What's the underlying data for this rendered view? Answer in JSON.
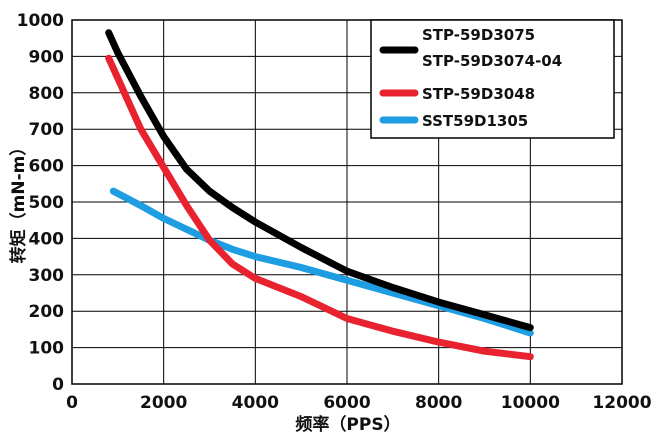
{
  "chart_data": {
    "type": "line",
    "title": "",
    "xlabel": "频率（PPS）",
    "ylabel": "转矩（mN-m）",
    "xlim": [
      0,
      12000
    ],
    "ylim": [
      0,
      1000
    ],
    "xticks": [
      0,
      2000,
      4000,
      6000,
      8000,
      10000,
      12000
    ],
    "yticks": [
      0,
      100,
      200,
      300,
      400,
      500,
      600,
      700,
      800,
      900,
      1000
    ],
    "grid": true,
    "legend_position": "top-right",
    "series": [
      {
        "name": "STP-59D3075",
        "name2": "STP-59D3074-04",
        "color": "#000000",
        "x": [
          800,
          1000,
          1500,
          2000,
          2500,
          3000,
          3500,
          4000,
          5000,
          6000,
          7000,
          8000,
          9000,
          10000
        ],
        "y": [
          965,
          910,
          790,
          680,
          590,
          530,
          485,
          445,
          375,
          310,
          265,
          225,
          190,
          155
        ]
      },
      {
        "name": "STP-59D3048",
        "color": "#e8222e",
        "x": [
          800,
          1000,
          1500,
          2000,
          2500,
          3000,
          3500,
          4000,
          5000,
          6000,
          7000,
          8000,
          9000,
          10000
        ],
        "y": [
          895,
          840,
          700,
          595,
          490,
          395,
          330,
          290,
          240,
          180,
          145,
          115,
          90,
          75
        ]
      },
      {
        "name": "SST59D1305",
        "color": "#1e9de2",
        "x": [
          900,
          1500,
          2000,
          2500,
          3000,
          3500,
          4000,
          5000,
          6000,
          7000,
          8000,
          9000,
          10000
        ],
        "y": [
          530,
          490,
          455,
          425,
          395,
          370,
          350,
          320,
          285,
          250,
          215,
          180,
          140
        ]
      }
    ]
  }
}
